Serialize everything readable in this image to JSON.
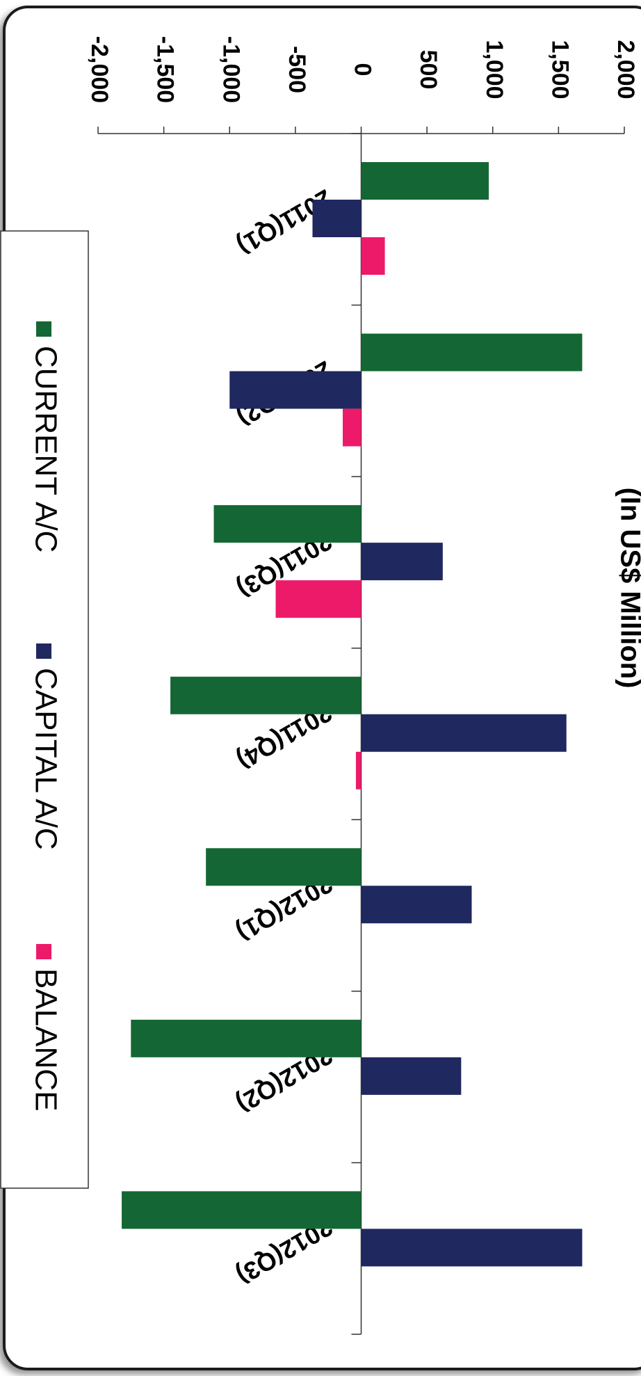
{
  "chart_data": {
    "type": "bar",
    "orientation": "horizontal",
    "title": "(In US$ Million)",
    "categories": [
      "2011(Q1)",
      "2011(Q2)",
      "2011(Q3)",
      "2011(Q4)",
      "2012(Q1)",
      "2012(Q2)",
      "2012(Q3)"
    ],
    "series": [
      {
        "name": "CURRENT A/C",
        "color": "#146734",
        "values": [
          970,
          1680,
          -1120,
          -1450,
          -1180,
          -1750,
          -1820
        ]
      },
      {
        "name": "CAPITAL A/C",
        "color": "#1f285f",
        "values": [
          -370,
          -1000,
          620,
          1560,
          840,
          760,
          1680
        ]
      },
      {
        "name": "BALANCE",
        "color": "#ed1a6a",
        "values": [
          180,
          -140,
          -650,
          -40,
          0,
          0,
          0
        ]
      }
    ],
    "value_axis": {
      "min": -2000,
      "max": 2000,
      "ticks": [
        -2000,
        -1500,
        -1000,
        -500,
        0,
        500,
        1000,
        1500,
        2000
      ],
      "tick_labels": [
        "-2,000",
        "-1,500",
        "-1,000",
        "-500",
        "0",
        "500",
        "1,000",
        "1,500",
        "2,000"
      ]
    },
    "legend_position": "left",
    "grid": false
  }
}
